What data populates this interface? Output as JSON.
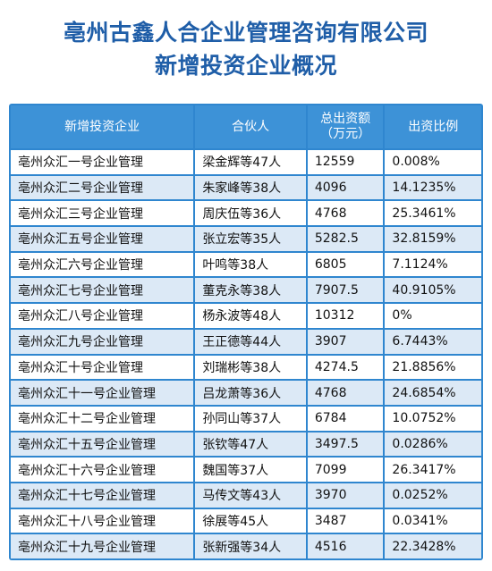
{
  "title": {
    "line1": "亳州古鑫人合企业管理咨询有限公司",
    "line2": "新增投资企业概况"
  },
  "table": {
    "headers": {
      "company": "新增投资企业",
      "partner": "合伙人",
      "amount_line1": "总出资额",
      "amount_line2": "（万元）",
      "ratio": "出资比例"
    },
    "rows": [
      {
        "company": "亳州众汇一号企业管理",
        "partner": "梁金辉等47人",
        "amount": "12559",
        "ratio": "0.008%"
      },
      {
        "company": "亳州众汇二号企业管理",
        "partner": "朱家峰等38人",
        "amount": "4096",
        "ratio": "14.1235%"
      },
      {
        "company": "亳州众汇三号企业管理",
        "partner": "周庆伍等36人",
        "amount": "4768",
        "ratio": "25.3461%"
      },
      {
        "company": "亳州众汇五号企业管理",
        "partner": "张立宏等35人",
        "amount": "5282.5",
        "ratio": "32.8159%"
      },
      {
        "company": "亳州众汇六号企业管理",
        "partner": "叶鸣等38人",
        "amount": "6805",
        "ratio": "7.1124%"
      },
      {
        "company": "亳州众汇七号企业管理",
        "partner": "董克永等38人",
        "amount": "7907.5",
        "ratio": "40.9105%"
      },
      {
        "company": "亳州众汇八号企业管理",
        "partner": "杨永波等48人",
        "amount": "10312",
        "ratio": "0%"
      },
      {
        "company": "亳州众汇九号企业管理",
        "partner": "王正德等44人",
        "amount": "3907",
        "ratio": "6.7443%"
      },
      {
        "company": "亳州众汇十号企业管理",
        "partner": "刘瑞彬等38人",
        "amount": "4274.5",
        "ratio": "21.8856%"
      },
      {
        "company": "亳州众汇十一号企业管理",
        "partner": "吕龙萧等36人",
        "amount": "4768",
        "ratio": "24.6854%"
      },
      {
        "company": "亳州众汇十二号企业管理",
        "partner": "孙同山等37人",
        "amount": "6784",
        "ratio": "10.0752%"
      },
      {
        "company": "亳州众汇十五号企业管理",
        "partner": "张钦等47人",
        "amount": "3497.5",
        "ratio": "0.0286%"
      },
      {
        "company": "亳州众汇十六号企业管理",
        "partner": "魏国等37人",
        "amount": "7099",
        "ratio": "26.3417%"
      },
      {
        "company": "亳州众汇十七号企业管理",
        "partner": "马传文等43人",
        "amount": "3970",
        "ratio": "0.0252%"
      },
      {
        "company": "亳州众汇十八号企业管理",
        "partner": "徐展等45人",
        "amount": "3487",
        "ratio": "0.0341%"
      },
      {
        "company": "亳州众汇十九号企业管理",
        "partner": "张新强等34人",
        "amount": "4516",
        "ratio": "22.3428%"
      }
    ]
  },
  "colors": {
    "title": "#1f5ea8",
    "header_bg": "#3d92d7",
    "border": "#2f86cf",
    "row_alt_bg": "#dce9f6",
    "row_bg": "#ffffff"
  }
}
